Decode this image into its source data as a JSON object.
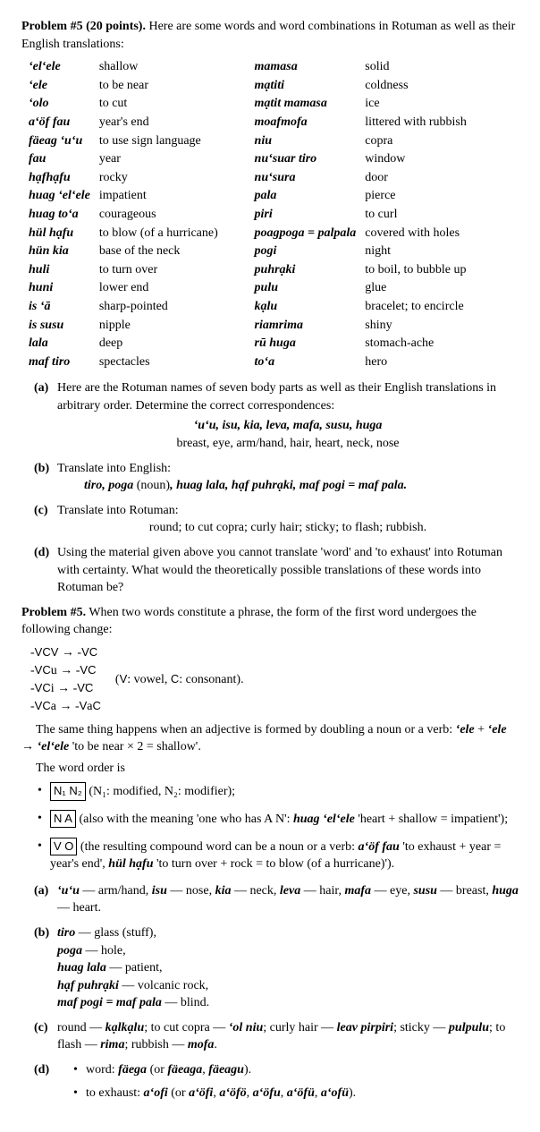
{
  "problem": {
    "header_prefix": "Problem #5 (20 points).",
    "header_rest": "Here are some words and word combinations in Rotuman as well as their English translations:",
    "vocab": [
      [
        "ʻelʻele",
        "shallow",
        "mamasa",
        "solid"
      ],
      [
        "ʻele",
        "to be near",
        "mạtiti",
        "coldness"
      ],
      [
        "ʻolo",
        "to cut",
        "mạtit mamasa",
        "ice"
      ],
      [
        "aʻöf fau",
        "year's end",
        "moafmofa",
        "littered with rubbish"
      ],
      [
        "fäeag ʻuʻu",
        "to use sign language",
        "niu",
        "copra"
      ],
      [
        "fau",
        "year",
        "nuʻsuar tiro",
        "window"
      ],
      [
        "hạfhạfu",
        "rocky",
        "nuʻsura",
        "door"
      ],
      [
        "huag ʻelʻele",
        "impatient",
        "pala",
        "pierce"
      ],
      [
        "huag toʻa",
        "courageous",
        "piri",
        "to curl"
      ],
      [
        "hül hạfu",
        "to blow (of a hurricane)",
        "poagpoga = palpala",
        "covered with holes"
      ],
      [
        "hün kia",
        "base of the neck",
        "pogi",
        "night"
      ],
      [
        "huli",
        "to turn over",
        "puhrạki",
        "to boil, to bubble up"
      ],
      [
        "huni",
        "lower end",
        "pulu",
        "glue"
      ],
      [
        "is ʻā",
        "sharp-pointed",
        "kạlu",
        "bracelet; to encircle"
      ],
      [
        "is susu",
        "nipple",
        "riamrima",
        "shiny"
      ],
      [
        "lala",
        "deep",
        "rū huga",
        "stomach-ache"
      ],
      [
        "maf tiro",
        "spectacles",
        "toʻa",
        "hero"
      ]
    ],
    "a": {
      "text": "Here are the Rotuman names of seven body parts as well as their English translations in arbitrary order. Determine the correct correspondences:",
      "rot": "ʻuʻu, isu, kia, leva, mafa, susu, huga",
      "eng": "breast, eye, arm/hand, hair, heart, neck, nose"
    },
    "b": {
      "text": "Translate into English:",
      "line": "tiro, poga (noun), huag lala, hạf puhrạki, maf pogi = maf pala."
    },
    "c": {
      "text": "Translate into Rotuman:",
      "line": "round; to cut copra; curly hair; sticky; to flash; rubbish."
    },
    "d": {
      "text": "Using the material given above you cannot translate 'word' and 'to exhaust' into Rotuman with certainty. What would the theoretically possible translations of these words into Rotuman be?"
    }
  },
  "solution": {
    "header_prefix": "Problem #5.",
    "intro": "When two words constitute a phrase, the form of the first word undergoes the following change:",
    "rules": [
      "-VCV → -VC",
      "-VCu → -VC",
      "-VCi  → -V̈C",
      "-VCa → -VaC"
    ],
    "rules_note": "(V: vowel, C: consonant).",
    "line2a": "The same thing happens when an adjective is formed by doubling a noun or a verb: ",
    "line2b": "ʻele",
    "line2c": " + ",
    "line2d": "ʻele",
    "line2e": " → ",
    "line2f": "ʻelʻele",
    "line2g": " 'to be near × 2 = shallow'.",
    "line3": "The word order is",
    "bullets": [
      {
        "box": "N₁ N₂",
        "rest": " (N₁: modified, N₂: modifier);"
      },
      {
        "box": "N A",
        "rest": " (also with the meaning 'one who has A N': ",
        "bi": "huag ʻelʻele",
        "rest2": " 'heart + shallow = impatient');"
      },
      {
        "box": "V O",
        "rest": " (the resulting compound word can be a noun or a verb: ",
        "bi": "aʻöf fau",
        "rest2": " 'to exhaust + year = year's end', ",
        "bi2": "hül hạfu",
        "rest3": " 'to turn over + rock = to blow (of a hurricane)')."
      }
    ],
    "a": "ʻuʻu — arm/hand, isu — nose, kia — neck, leva — hair, mafa — eye, susu — breast, huga — heart.",
    "b": [
      [
        "tiro",
        " — glass (stuff),"
      ],
      [
        "poga",
        " — hole,"
      ],
      [
        "huag lala",
        " — patient,"
      ],
      [
        "hạf puhrạki",
        " — volcanic rock,"
      ],
      [
        "maf pogi = maf pala",
        " — blind."
      ]
    ],
    "c": "round — kạlkạlu; to cut copra — ʻol niu; curly hair — leav pirpiri; sticky — pulpulu; to flash — rima; rubbish — mofa.",
    "d": [
      "word: fäega (or fäeaga, fäeagu).",
      "to exhaust: aʻofi (or aʻöfi, aʻöfö, aʻöfu, aʻöfü, aʻofü)."
    ]
  }
}
